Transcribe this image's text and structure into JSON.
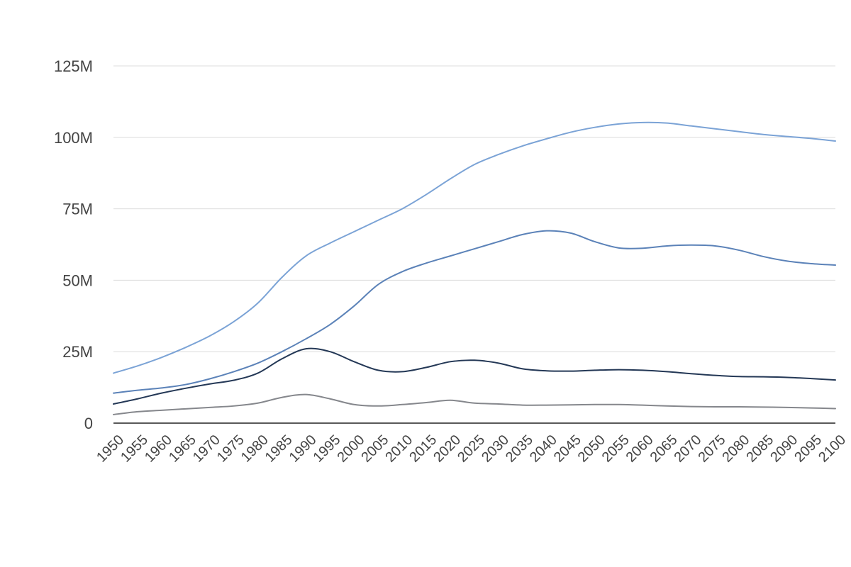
{
  "chart_data": {
    "type": "line",
    "title": "",
    "xlabel": "",
    "ylabel": "",
    "x": [
      1950,
      1955,
      1960,
      1965,
      1970,
      1975,
      1980,
      1985,
      1990,
      1995,
      2000,
      2005,
      2010,
      2015,
      2020,
      2025,
      2030,
      2035,
      2040,
      2045,
      2050,
      2055,
      2060,
      2065,
      2070,
      2075,
      2080,
      2085,
      2090,
      2095,
      2100
    ],
    "xticks": [
      "1950",
      "1955",
      "1960",
      "1965",
      "1970",
      "1975",
      "1980",
      "1985",
      "1990",
      "1995",
      "2000",
      "2005",
      "2010",
      "2015",
      "2020",
      "2025",
      "2030",
      "2035",
      "2040",
      "2045",
      "2050",
      "2055",
      "2060",
      "2065",
      "2070",
      "2075",
      "2080",
      "2085",
      "2090",
      "2095",
      "2100"
    ],
    "yticks": [
      {
        "value": 0,
        "label": "0"
      },
      {
        "value": 25000000,
        "label": "25M"
      },
      {
        "value": 50000000,
        "label": "50M"
      },
      {
        "value": 75000000,
        "label": "75M"
      },
      {
        "value": 100000000,
        "label": "100M"
      },
      {
        "value": 125000000,
        "label": "125M"
      }
    ],
    "ylim": [
      0,
      125000000
    ],
    "xlim": [
      1950,
      2100
    ],
    "grid": true,
    "legend": "none",
    "series": [
      {
        "color": "#7ba3d6",
        "values": [
          17500000,
          20000000,
          23000000,
          26500000,
          30500000,
          35500000,
          42000000,
          51000000,
          58500000,
          63000000,
          67000000,
          71000000,
          75000000,
          80000000,
          85500000,
          90500000,
          94000000,
          97000000,
          99500000,
          101800000,
          103500000,
          104700000,
          105200000,
          105000000,
          104000000,
          103000000,
          102000000,
          101000000,
          100300000,
          99600000,
          98700000
        ]
      },
      {
        "color": "#5b82b8",
        "values": [
          10500000,
          11500000,
          12300000,
          13500000,
          15500000,
          18000000,
          21000000,
          25000000,
          29500000,
          34500000,
          41000000,
          48500000,
          53000000,
          56000000,
          58500000,
          61000000,
          63500000,
          66000000,
          67300000,
          66500000,
          63500000,
          61300000,
          61200000,
          62000000,
          62300000,
          62000000,
          60500000,
          58300000,
          56700000,
          55800000,
          55300000
        ]
      },
      {
        "color": "#243856",
        "values": [
          6700000,
          8500000,
          10500000,
          12200000,
          13700000,
          15000000,
          17500000,
          22500000,
          26000000,
          25000000,
          21500000,
          18500000,
          18000000,
          19500000,
          21500000,
          22000000,
          21000000,
          19000000,
          18300000,
          18200000,
          18500000,
          18700000,
          18500000,
          18000000,
          17300000,
          16700000,
          16300000,
          16200000,
          16000000,
          15600000,
          15100000
        ]
      },
      {
        "color": "#85878c",
        "values": [
          3000000,
          4000000,
          4500000,
          5000000,
          5500000,
          6000000,
          7000000,
          9000000,
          10000000,
          8500000,
          6500000,
          6000000,
          6500000,
          7200000,
          8000000,
          7000000,
          6700000,
          6300000,
          6300000,
          6400000,
          6500000,
          6500000,
          6300000,
          6000000,
          5800000,
          5700000,
          5700000,
          5600000,
          5500000,
          5300000,
          5100000
        ]
      }
    ]
  }
}
